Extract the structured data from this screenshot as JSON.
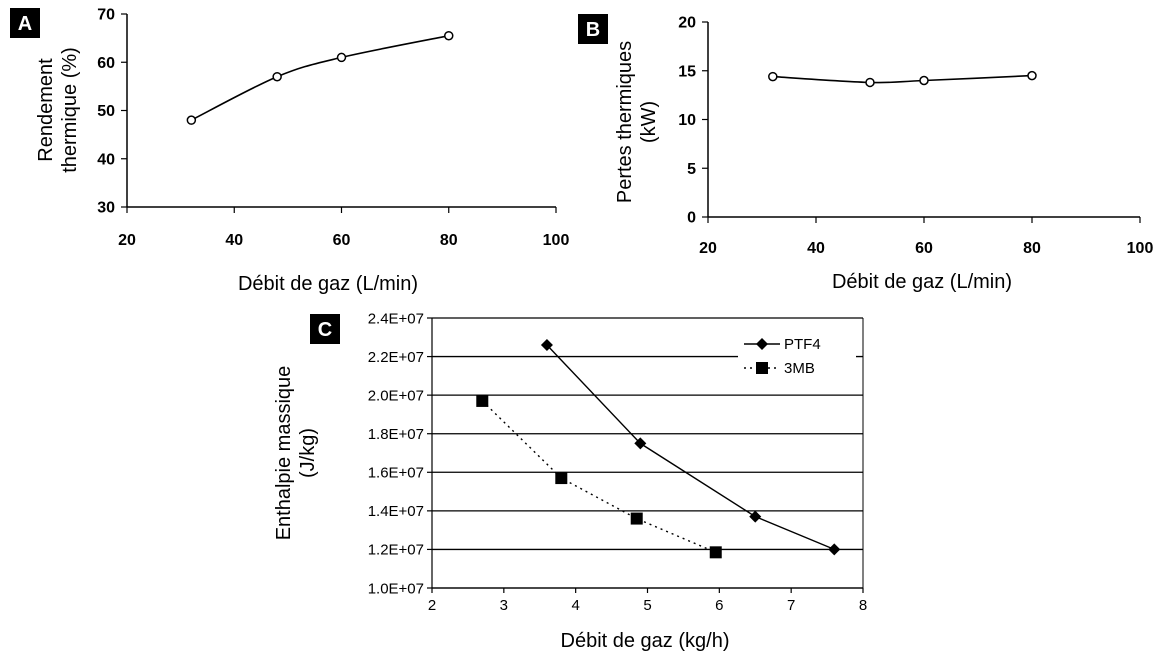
{
  "chart_data": [
    {
      "panel": "A",
      "type": "line",
      "xlabel": "Débit de gaz (L/min)",
      "ylabel": [
        "Rendement",
        "thermique (%)"
      ],
      "xlim": [
        20,
        100
      ],
      "ylim": [
        30,
        70
      ],
      "xticks": [
        "20",
        "40",
        "60",
        "80",
        "100"
      ],
      "yticks": [
        "30",
        "40",
        "50",
        "60",
        "70"
      ],
      "grid": false,
      "legend": "none",
      "series": [
        {
          "marker": "open-circle",
          "x": [
            32,
            48,
            60,
            80
          ],
          "y": [
            48,
            57,
            61,
            65.5
          ]
        }
      ]
    },
    {
      "panel": "B",
      "type": "line",
      "xlabel": "Débit de gaz (L/min)",
      "ylabel": [
        "Pertes thermiques",
        "(kW)"
      ],
      "xlim": [
        20,
        100
      ],
      "ylim": [
        0,
        20
      ],
      "xticks": [
        "20",
        "40",
        "60",
        "80",
        "100"
      ],
      "yticks": [
        "0",
        "5",
        "10",
        "15",
        "20"
      ],
      "grid": false,
      "legend": "none",
      "series": [
        {
          "marker": "open-circle",
          "x": [
            32,
            50,
            60,
            80
          ],
          "y": [
            14.4,
            13.8,
            14.0,
            14.5
          ]
        }
      ]
    },
    {
      "panel": "C",
      "type": "line",
      "xlabel": "Débit de gaz (kg/h)",
      "ylabel": [
        "Enthalpie massique",
        "(J/kg)"
      ],
      "xlim": [
        2,
        8
      ],
      "ylim": [
        10000000,
        24000000
      ],
      "xticks": [
        "2",
        "3",
        "4",
        "5",
        "6",
        "7",
        "8"
      ],
      "yticks": [
        "1.0E+07",
        "1.2E+07",
        "1.4E+07",
        "1.6E+07",
        "1.8E+07",
        "2.0E+07",
        "2.2E+07",
        "2.4E+07"
      ],
      "grid": true,
      "legend": "top-right",
      "series": [
        {
          "name": "PTF4",
          "marker": "diamond",
          "line": "solid",
          "x": [
            3.6,
            4.9,
            6.5,
            7.6
          ],
          "y": [
            22600000,
            17500000,
            13700000,
            12000000
          ]
        },
        {
          "name": "3MB",
          "marker": "square",
          "line": "dotted",
          "x": [
            2.7,
            3.8,
            4.85,
            5.95
          ],
          "y": [
            19700000,
            15700000,
            13600000,
            11850000
          ]
        }
      ]
    }
  ],
  "panel_labels": {
    "a": "A",
    "b": "B",
    "c": "C"
  }
}
